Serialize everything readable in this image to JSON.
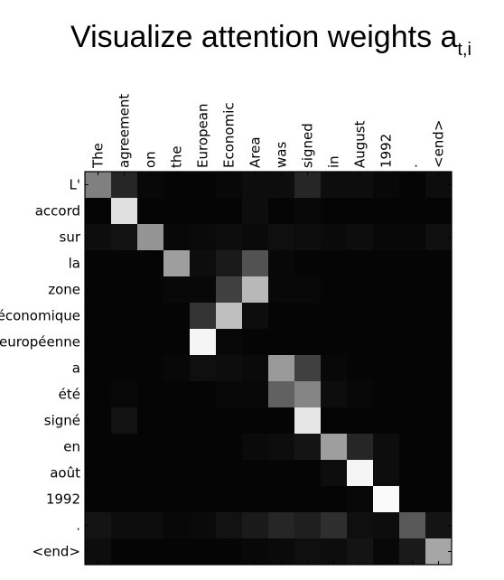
{
  "chart_data": {
    "type": "heatmap",
    "title": "Visualize attention weights a",
    "title_subscript": "t,i",
    "x_labels": [
      "The",
      "agreement",
      "on",
      "the",
      "European",
      "Economic",
      "Area",
      "was",
      "signed",
      "in",
      "August",
      "1992",
      ".",
      "<end>"
    ],
    "y_labels": [
      "L'",
      "accord",
      "sur",
      "la",
      "zone",
      "économique",
      "européenne",
      "a",
      "été",
      "signé",
      "en",
      "août",
      "1992",
      ".",
      "<end>"
    ],
    "colormap": "gray",
    "value_range": [
      0,
      1
    ],
    "values": [
      [
        0.5,
        0.15,
        0.03,
        0.02,
        0.02,
        0.03,
        0.05,
        0.05,
        0.15,
        0.05,
        0.05,
        0.03,
        0.02,
        0.05
      ],
      [
        0.02,
        0.88,
        0.02,
        0.02,
        0.02,
        0.02,
        0.05,
        0.02,
        0.03,
        0.02,
        0.02,
        0.02,
        0.02,
        0.02
      ],
      [
        0.05,
        0.07,
        0.58,
        0.03,
        0.04,
        0.05,
        0.04,
        0.06,
        0.05,
        0.04,
        0.05,
        0.03,
        0.03,
        0.06
      ],
      [
        0.02,
        0.02,
        0.02,
        0.62,
        0.05,
        0.1,
        0.32,
        0.03,
        0.02,
        0.02,
        0.02,
        0.02,
        0.02,
        0.02
      ],
      [
        0.02,
        0.02,
        0.02,
        0.03,
        0.03,
        0.25,
        0.72,
        0.03,
        0.03,
        0.02,
        0.02,
        0.02,
        0.02,
        0.02
      ],
      [
        0.02,
        0.02,
        0.02,
        0.02,
        0.2,
        0.75,
        0.05,
        0.02,
        0.02,
        0.02,
        0.02,
        0.02,
        0.02,
        0.02
      ],
      [
        0.02,
        0.02,
        0.02,
        0.02,
        0.96,
        0.03,
        0.02,
        0.02,
        0.02,
        0.02,
        0.02,
        0.02,
        0.02,
        0.02
      ],
      [
        0.02,
        0.02,
        0.02,
        0.03,
        0.06,
        0.05,
        0.04,
        0.6,
        0.25,
        0.03,
        0.02,
        0.02,
        0.02,
        0.02
      ],
      [
        0.02,
        0.03,
        0.02,
        0.02,
        0.02,
        0.03,
        0.03,
        0.38,
        0.52,
        0.05,
        0.03,
        0.02,
        0.02,
        0.02
      ],
      [
        0.02,
        0.07,
        0.02,
        0.02,
        0.02,
        0.02,
        0.02,
        0.02,
        0.9,
        0.02,
        0.02,
        0.02,
        0.02,
        0.02
      ],
      [
        0.02,
        0.02,
        0.02,
        0.02,
        0.02,
        0.02,
        0.04,
        0.05,
        0.08,
        0.62,
        0.15,
        0.05,
        0.02,
        0.02
      ],
      [
        0.02,
        0.02,
        0.02,
        0.02,
        0.02,
        0.02,
        0.02,
        0.02,
        0.02,
        0.05,
        0.96,
        0.05,
        0.02,
        0.02
      ],
      [
        0.02,
        0.02,
        0.02,
        0.02,
        0.02,
        0.02,
        0.02,
        0.02,
        0.02,
        0.02,
        0.03,
        0.98,
        0.02,
        0.02
      ],
      [
        0.08,
        0.05,
        0.05,
        0.03,
        0.04,
        0.07,
        0.1,
        0.15,
        0.12,
        0.18,
        0.06,
        0.05,
        0.35,
        0.08
      ],
      [
        0.05,
        0.02,
        0.02,
        0.02,
        0.02,
        0.02,
        0.03,
        0.04,
        0.06,
        0.05,
        0.08,
        0.03,
        0.1,
        0.65
      ]
    ]
  }
}
